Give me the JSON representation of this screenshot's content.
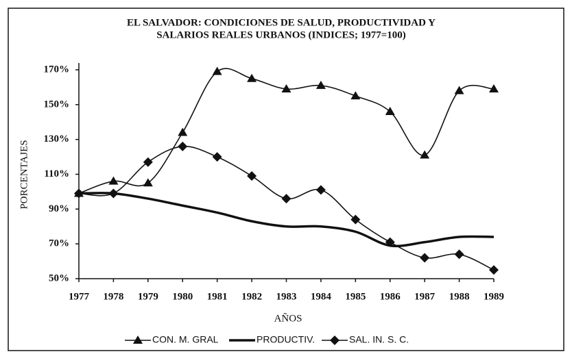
{
  "chart_data": {
    "type": "line",
    "title": [
      "EL SALVADOR: CONDICIONES DE SALUD, PRODUCTIVIDAD Y",
      "SALARIOS REALES URBANOS (INDICES; 1977=100)"
    ],
    "x_label": "AÑOS",
    "y_label": "PORCENTAJES",
    "categories": [
      "1977",
      "1978",
      "1979",
      "1980",
      "1981",
      "1982",
      "1983",
      "1984",
      "1985",
      "1986",
      "1987",
      "1988",
      "1989"
    ],
    "series": [
      {
        "name": "CON. M. GRAL",
        "color": "#111111",
        "marker": "triangle",
        "values": [
          99,
          106,
          105,
          134,
          169,
          165,
          159,
          161,
          155,
          146,
          121,
          158,
          159
        ]
      },
      {
        "name": "PRODUCTIV.",
        "color": "#111111",
        "marker": "none",
        "values": [
          99,
          99,
          96,
          92,
          88,
          83,
          80,
          80,
          77,
          69,
          71,
          74,
          74
        ]
      },
      {
        "name": "SAL. IN. S. C.",
        "color": "#111111",
        "marker": "diamond",
        "values": [
          99,
          99,
          117,
          126,
          120,
          109,
          96,
          101,
          84,
          71,
          62,
          64,
          55
        ]
      }
    ],
    "ylim": [
      50,
      170
    ],
    "yticks": [
      {
        "value": 50,
        "label": "50%"
      },
      {
        "value": 70,
        "label": "70%"
      },
      {
        "value": 90,
        "label": "90%"
      },
      {
        "value": 110,
        "label": "110%"
      },
      {
        "value": 130,
        "label": "130%"
      },
      {
        "value": 150,
        "label": "150%"
      },
      {
        "value": 170,
        "label": "170%"
      }
    ],
    "legend": "bottom"
  }
}
